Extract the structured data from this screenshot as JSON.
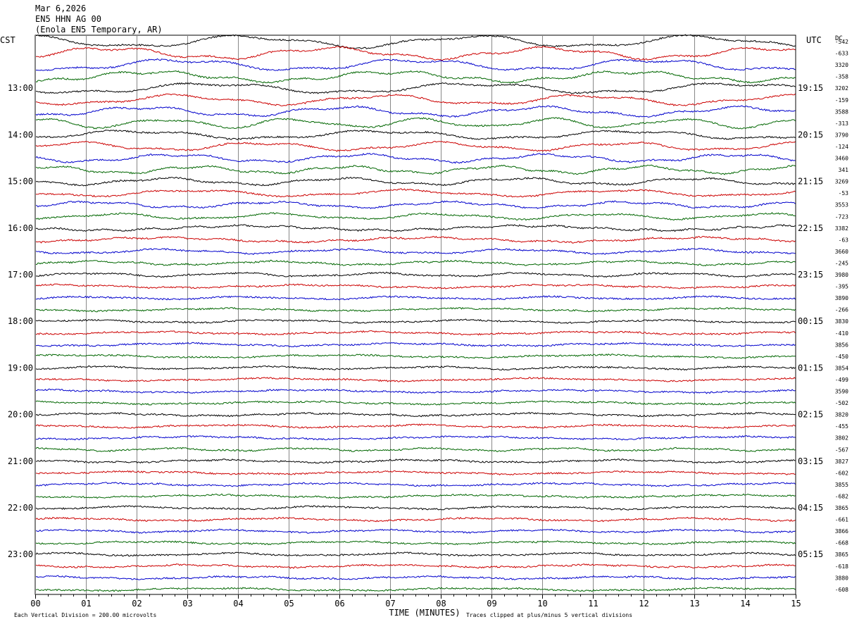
{
  "header": {
    "date": "Mar 6,2026",
    "channel": "EN5 HHN AG 00",
    "station": "(Enola EN5 Temporary, AR)"
  },
  "chart_data": {
    "type": "line",
    "left_label": "CST",
    "right_label": "UTC",
    "dc_label": "DC",
    "xlabel": "TIME (MINUTES)",
    "xlim": [
      0,
      15
    ],
    "x_ticks": [
      "00",
      "01",
      "02",
      "03",
      "04",
      "05",
      "06",
      "07",
      "08",
      "09",
      "10",
      "11",
      "12",
      "13",
      "14",
      "15"
    ],
    "left_hour_labels": [
      {
        "row": 4,
        "label": "13:00"
      },
      {
        "row": 8,
        "label": "14:00"
      },
      {
        "row": 12,
        "label": "15:00"
      },
      {
        "row": 16,
        "label": "16:00"
      },
      {
        "row": 20,
        "label": "17:00"
      },
      {
        "row": 24,
        "label": "18:00"
      },
      {
        "row": 28,
        "label": "19:00"
      },
      {
        "row": 32,
        "label": "20:00"
      },
      {
        "row": 36,
        "label": "21:00"
      },
      {
        "row": 40,
        "label": "22:00"
      },
      {
        "row": 44,
        "label": "23:00"
      }
    ],
    "right_hour_labels": [
      {
        "row": 4,
        "label": "19:15"
      },
      {
        "row": 8,
        "label": "20:15"
      },
      {
        "row": 12,
        "label": "21:15"
      },
      {
        "row": 16,
        "label": "22:15"
      },
      {
        "row": 20,
        "label": "23:15"
      },
      {
        "row": 24,
        "label": "00:15"
      },
      {
        "row": 28,
        "label": "01:15"
      },
      {
        "row": 32,
        "label": "02:15"
      },
      {
        "row": 36,
        "label": "03:15"
      },
      {
        "row": 40,
        "label": "04:15"
      },
      {
        "row": 44,
        "label": "05:15"
      }
    ],
    "dc_offsets": [
      "-542",
      "-633",
      "3320",
      "-358",
      "3202",
      "-159",
      "3588",
      "-313",
      "3790",
      "-124",
      "3460",
      "341",
      "3269",
      "-53",
      "3553",
      "-723",
      "3382",
      "-63",
      "3660",
      "-245",
      "3980",
      "-395",
      "3890",
      "-266",
      "3830",
      "-410",
      "3856",
      "-450",
      "3854",
      "-499",
      "3590",
      "-502",
      "3820",
      "-455",
      "3802",
      "-567",
      "3827",
      "-602",
      "3855",
      "-682",
      "3865",
      "-661",
      "3866",
      "-668",
      "3865",
      "-618",
      "3880",
      "-608"
    ],
    "series_colors": [
      "#000000",
      "#cc0000",
      "#0000cc",
      "#006600"
    ],
    "footer_left": "Each Vertical Division =  200.00 microvolts",
    "footer_right": "Traces clipped at plus/minus 5 vertical divisions"
  }
}
